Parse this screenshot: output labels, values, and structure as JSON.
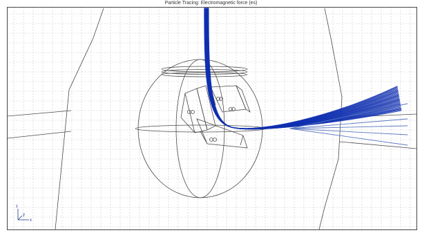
{
  "plot": {
    "title": "Particle Tracing: Electromagnetic force (es)"
  },
  "triad": {
    "x_label": "x",
    "y_label": "y",
    "z_label": "z"
  },
  "colors": {
    "trajectory": "#1030b0",
    "trajectory_light": "#5a78c0",
    "geometry": "#4a4a4a",
    "grid": "#b8b8b8"
  }
}
